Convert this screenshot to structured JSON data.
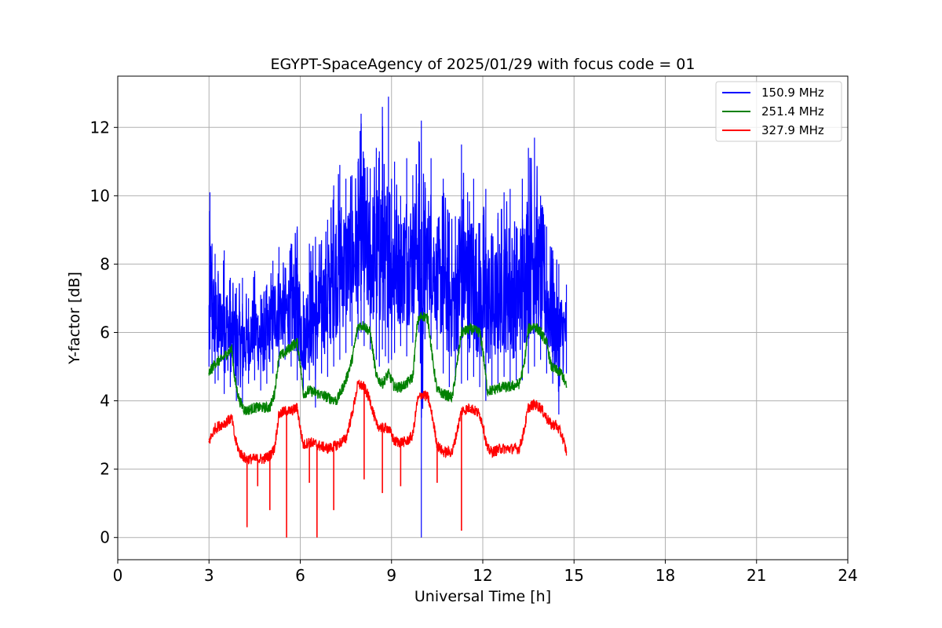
{
  "chart_data": {
    "type": "line",
    "title": "EGYPT-SpaceAgency of 2025/01/29 with focus code = 01",
    "xlabel": "Universal Time [h]",
    "ylabel": "Y-factor [dB]",
    "xlim": [
      0,
      24
    ],
    "ylim": [
      -0.65,
      13.5
    ],
    "xticks": [
      0,
      3,
      6,
      9,
      12,
      15,
      18,
      21,
      24
    ],
    "yticks": [
      0,
      2,
      4,
      6,
      8,
      10,
      12
    ],
    "grid": true,
    "legend_position": "top-right",
    "series": [
      {
        "name": "150.9 MHz",
        "color": "#0000ff",
        "x": [
          3.0,
          3.03,
          3.1,
          3.2,
          3.3,
          3.5,
          3.7,
          3.9,
          4.1,
          4.3,
          4.5,
          4.7,
          4.9,
          5.1,
          5.3,
          5.5,
          5.7,
          5.9,
          6.1,
          6.3,
          6.5,
          6.7,
          6.9,
          7.1,
          7.3,
          7.5,
          7.7,
          7.9,
          8.0,
          8.1,
          8.3,
          8.5,
          8.6,
          8.7,
          8.8,
          8.9,
          9.0,
          9.1,
          9.3,
          9.5,
          9.7,
          9.9,
          9.98,
          10.1,
          10.3,
          10.5,
          10.7,
          10.9,
          11.1,
          11.3,
          11.5,
          11.7,
          11.9,
          12.1,
          12.3,
          12.5,
          12.7,
          12.9,
          13.1,
          13.3,
          13.5,
          13.7,
          13.9,
          14.1,
          14.3,
          14.5,
          14.75
        ],
        "y_low": [
          5.0,
          5.5,
          4.8,
          4.5,
          4.6,
          4.2,
          4.4,
          4.0,
          3.8,
          4.5,
          4.6,
          4.3,
          4.5,
          4.8,
          5.0,
          5.2,
          5.0,
          4.6,
          4.3,
          4.6,
          3.8,
          4.8,
          4.7,
          5.0,
          5.2,
          5.4,
          5.6,
          5.8,
          6.0,
          5.6,
          5.5,
          5.2,
          5.0,
          5.5,
          5.3,
          5.1,
          5.2,
          5.4,
          5.6,
          5.3,
          5.7,
          6.0,
          0.0,
          5.8,
          5.8,
          5.5,
          4.8,
          4.4,
          4.6,
          4.5,
          4.6,
          4.7,
          4.4,
          4.0,
          4.3,
          4.5,
          4.7,
          4.4,
          4.6,
          4.6,
          4.8,
          5.0,
          5.2,
          4.8,
          4.5,
          3.6,
          4.8
        ],
        "y_high": [
          6.8,
          10.1,
          8.6,
          8.3,
          7.8,
          8.4,
          7.6,
          7.3,
          7.6,
          7.0,
          7.8,
          7.1,
          7.4,
          8.1,
          8.5,
          7.9,
          8.6,
          9.1,
          7.2,
          8.6,
          8.8,
          8.7,
          9.3,
          10.3,
          10.9,
          10.5,
          10.6,
          11.0,
          12.4,
          11.1,
          10.8,
          11.4,
          11.3,
          12.6,
          10.0,
          12.9,
          10.5,
          11.0,
          10.0,
          11.1,
          10.6,
          11.6,
          12.2,
          10.4,
          11.1,
          9.1,
          10.5,
          9.5,
          9.4,
          11.5,
          10.1,
          10.5,
          9.2,
          10.2,
          8.9,
          9.5,
          10.1,
          10.2,
          9.1,
          10.5,
          11.4,
          11.7,
          10.0,
          9.1,
          8.4,
          8.0,
          7.4
        ]
      },
      {
        "name": "251.4 MHz",
        "color": "#008000",
        "x": [
          3.0,
          3.2,
          3.4,
          3.6,
          3.75,
          3.85,
          4.0,
          4.2,
          4.5,
          4.8,
          5.0,
          5.15,
          5.3,
          5.5,
          5.7,
          5.9,
          6.0,
          6.1,
          6.3,
          6.6,
          6.9,
          7.2,
          7.5,
          7.7,
          7.9,
          8.1,
          8.3,
          8.5,
          8.7,
          8.9,
          9.1,
          9.3,
          9.5,
          9.7,
          9.85,
          10.0,
          10.2,
          10.35,
          10.5,
          10.7,
          11.0,
          11.3,
          11.6,
          11.9,
          12.0,
          12.15,
          12.3,
          12.6,
          12.9,
          13.2,
          13.35,
          13.5,
          13.7,
          13.9,
          14.1,
          14.25,
          14.4,
          14.6,
          14.75
        ],
        "y": [
          4.8,
          5.1,
          5.2,
          5.4,
          5.5,
          4.6,
          4.0,
          3.7,
          3.8,
          3.8,
          3.8,
          4.2,
          5.3,
          5.4,
          5.6,
          5.7,
          5.1,
          4.2,
          4.3,
          4.2,
          4.1,
          4.0,
          4.6,
          5.2,
          6.2,
          6.2,
          6.0,
          4.7,
          4.5,
          4.8,
          4.4,
          4.4,
          4.5,
          4.7,
          6.3,
          6.5,
          6.4,
          5.2,
          4.3,
          4.2,
          4.1,
          6.0,
          6.1,
          6.0,
          5.5,
          4.3,
          4.3,
          4.4,
          4.4,
          4.5,
          5.0,
          6.1,
          6.2,
          6.0,
          5.7,
          5.0,
          4.9,
          4.8,
          4.4
        ]
      },
      {
        "name": "327.9 MHz",
        "color": "#ff0000",
        "x": [
          3.0,
          3.2,
          3.4,
          3.6,
          3.75,
          3.85,
          4.0,
          4.2,
          4.5,
          4.8,
          5.0,
          5.15,
          5.3,
          5.5,
          5.7,
          5.9,
          6.0,
          6.1,
          6.3,
          6.6,
          6.9,
          7.2,
          7.5,
          7.7,
          7.9,
          8.1,
          8.3,
          8.5,
          8.7,
          8.9,
          9.1,
          9.3,
          9.5,
          9.7,
          9.85,
          10.0,
          10.2,
          10.35,
          10.5,
          10.7,
          11.0,
          11.3,
          11.6,
          11.9,
          12.0,
          12.15,
          12.3,
          12.6,
          12.9,
          13.2,
          13.35,
          13.5,
          13.7,
          13.9,
          14.1,
          14.25,
          14.4,
          14.6,
          14.75
        ],
        "y": [
          2.8,
          3.2,
          3.3,
          3.4,
          3.5,
          2.9,
          2.5,
          2.3,
          2.3,
          2.3,
          2.4,
          2.6,
          3.6,
          3.7,
          3.7,
          3.8,
          3.2,
          2.7,
          2.8,
          2.7,
          2.6,
          2.7,
          2.9,
          3.6,
          4.5,
          4.4,
          4.0,
          3.3,
          3.2,
          3.2,
          2.8,
          2.8,
          2.8,
          3.0,
          4.0,
          4.2,
          4.1,
          3.5,
          2.7,
          2.5,
          2.5,
          3.7,
          3.8,
          3.6,
          3.3,
          2.6,
          2.5,
          2.6,
          2.6,
          2.6,
          3.1,
          3.8,
          3.9,
          3.8,
          3.5,
          3.3,
          3.3,
          3.0,
          2.5
        ],
        "dips_x": [
          4.25,
          4.6,
          5.0,
          5.55,
          6.3,
          6.55,
          7.1,
          8.1,
          8.7,
          9.3,
          10.5,
          11.3
        ],
        "dips_y": [
          0.3,
          1.5,
          0.8,
          0.0,
          1.6,
          0.0,
          0.8,
          1.7,
          1.3,
          1.5,
          1.6,
          0.2
        ]
      }
    ]
  }
}
